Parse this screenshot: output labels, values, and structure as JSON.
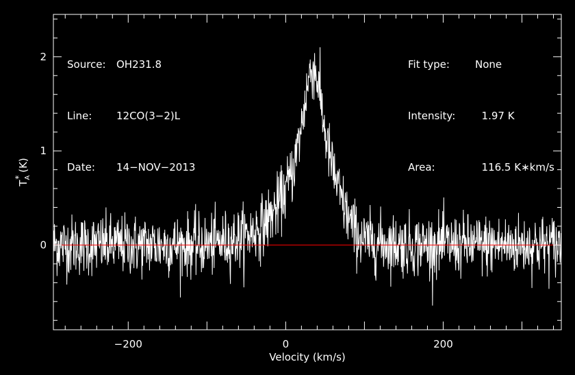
{
  "chart_data": {
    "type": "line",
    "title": "",
    "xlabel": "Velocity (km/s)",
    "ylabel_main": "T",
    "ylabel_sub": "A",
    "ylabel_sup": "*",
    "ylabel_unit": "(K)",
    "xlim": [
      -295,
      350
    ],
    "ylim": [
      -0.9,
      2.45
    ],
    "xticks": [
      -200,
      0,
      200
    ],
    "xtick_labels": [
      "−200",
      "0",
      "200"
    ],
    "yticks": [
      0,
      1,
      2
    ],
    "ytick_labels": [
      "0",
      "1",
      "2"
    ],
    "grid": false,
    "baseline": 0,
    "colors": {
      "background": "#000000",
      "spectrum": "#ffffff",
      "baseline": "#ff0000",
      "axes": "#ffffff"
    },
    "series": [
      {
        "x": [
          -295,
          -200,
          -150,
          -100,
          -80,
          -60,
          -45,
          -30,
          -20,
          -10,
          0,
          10,
          20,
          25,
          30,
          35,
          40,
          45,
          50,
          55,
          60,
          70,
          80,
          90,
          100,
          150,
          200,
          250,
          300,
          350
        ],
        "values": [
          0,
          0,
          0,
          0,
          0.03,
          0.07,
          0.12,
          0.2,
          0.3,
          0.42,
          0.58,
          0.82,
          1.25,
          1.55,
          1.8,
          1.9,
          1.78,
          1.5,
          1.2,
          0.98,
          0.8,
          0.5,
          0.28,
          0.12,
          0.04,
          0,
          0,
          0,
          0,
          0
        ]
      }
    ]
  },
  "info_left": [
    {
      "key": "Source:",
      "value": "OH231.8"
    },
    {
      "key": "Line:",
      "value": "12CO(3−2)L"
    },
    {
      "key": "Date:",
      "value": "14−NOV−2013"
    }
  ],
  "info_right": [
    {
      "key": "Fit type:",
      "value": "None"
    },
    {
      "key": "Intensity:",
      "value": "  1.97 K"
    },
    {
      "key": "Area:",
      "value": "  116.5 K∗km/s"
    }
  ]
}
